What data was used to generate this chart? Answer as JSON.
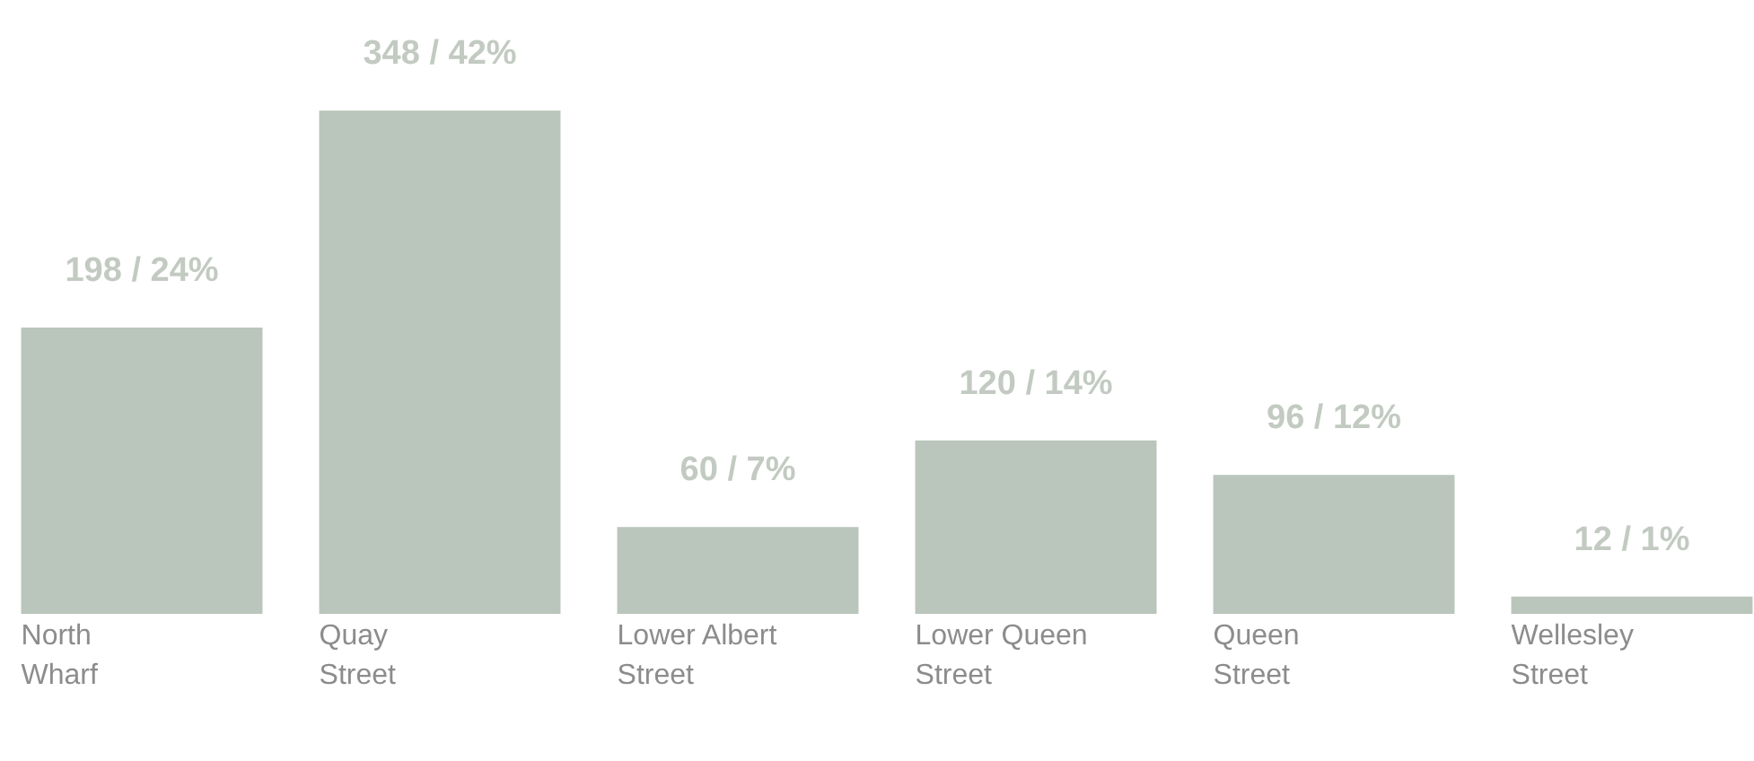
{
  "chart_data": {
    "type": "bar",
    "categories": [
      "North Wharf",
      "Quay Street",
      "Lower Albert Street",
      "Lower Queen Street",
      "Queen Street",
      "Wellesley Street"
    ],
    "values": [
      198,
      348,
      60,
      120,
      96,
      12
    ],
    "value_labels": [
      "198 / 24%",
      "348 / 42%",
      "60 / 7%",
      "120 / 14%",
      "96 / 12%",
      "12 / 1%"
    ],
    "color": "#bac5bb",
    "grid": false
  }
}
